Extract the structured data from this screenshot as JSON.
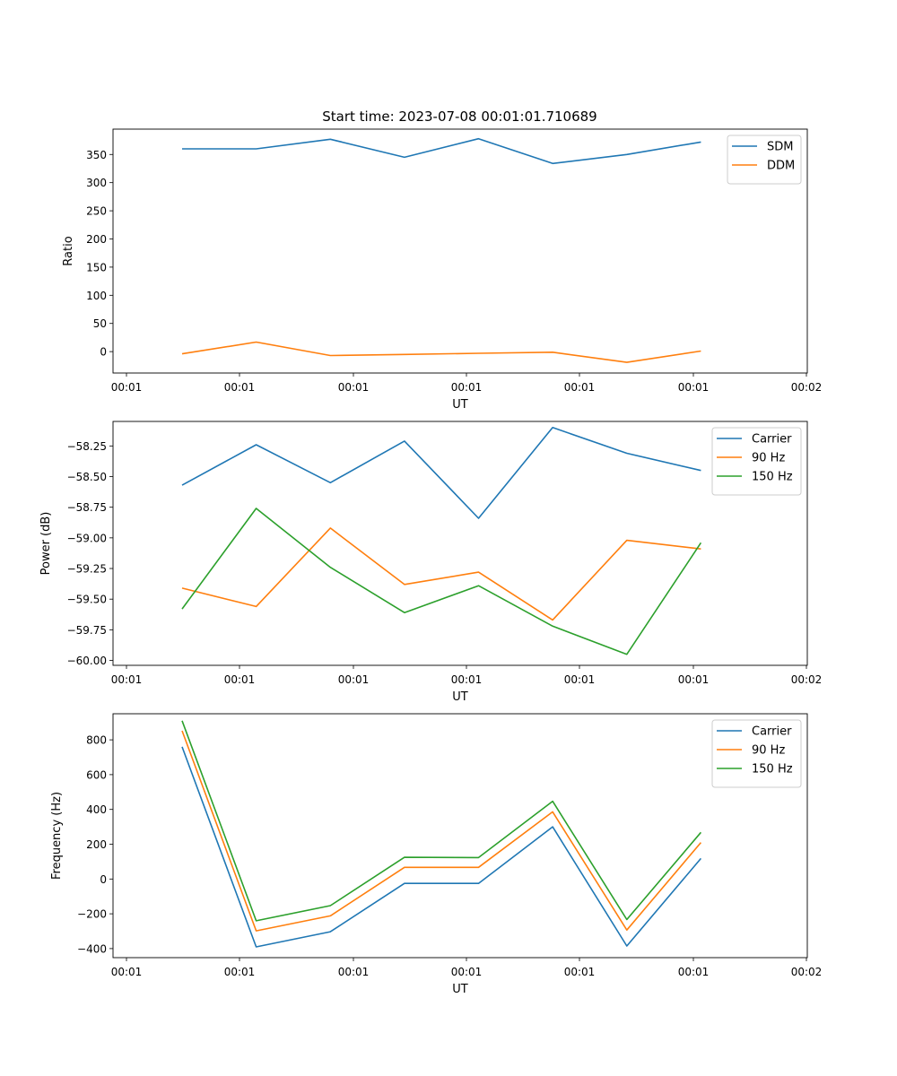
{
  "title": "Start time: 2023-07-08 00:01:01.710689",
  "colors": {
    "c1": "#1f77b4",
    "c2": "#ff7f0e",
    "c3": "#2ca02c"
  },
  "chart_data": [
    {
      "type": "line",
      "id": "ratio",
      "xlabel": "UT",
      "ylabel": "Ratio",
      "x_tick_labels": [
        "00:01",
        "00:01",
        "00:01",
        "00:01",
        "00:01",
        "00:01",
        "00:02"
      ],
      "ylim": [
        -38,
        395
      ],
      "y_ticks": [
        0,
        50,
        100,
        150,
        200,
        250,
        300,
        350
      ],
      "y_tick_labels": [
        "0",
        "50",
        "100",
        "150",
        "200",
        "250",
        "300",
        "350"
      ],
      "x": [
        0,
        1,
        2,
        3,
        4,
        5,
        6,
        7
      ],
      "legend_position": "top-right",
      "series": [
        {
          "name": "SDM",
          "color": "#1f77b4",
          "values": [
            360,
            360,
            377,
            345,
            378,
            334,
            350,
            372
          ]
        },
        {
          "name": "DDM",
          "color": "#ff7f0e",
          "values": [
            -4,
            17,
            -7,
            -5,
            -3,
            -1,
            -19,
            1
          ]
        }
      ]
    },
    {
      "type": "line",
      "id": "power",
      "xlabel": "UT",
      "ylabel": "Power (dB)",
      "x_tick_labels": [
        "00:01",
        "00:01",
        "00:01",
        "00:01",
        "00:01",
        "00:01",
        "00:02"
      ],
      "ylim": [
        -60.04,
        -58.05
      ],
      "y_ticks": [
        -60.0,
        -59.75,
        -59.5,
        -59.25,
        -59.0,
        -58.75,
        -58.5,
        -58.25
      ],
      "y_tick_labels": [
        "−60.00",
        "−59.75",
        "−59.50",
        "−59.25",
        "−59.00",
        "−58.75",
        "−58.50",
        "−58.25"
      ],
      "x": [
        0,
        1,
        2,
        3,
        4,
        5,
        6,
        7
      ],
      "legend_position": "top-right",
      "series": [
        {
          "name": "Carrier",
          "color": "#1f77b4",
          "values": [
            -58.57,
            -58.24,
            -58.55,
            -58.21,
            -58.84,
            -58.1,
            -58.31,
            -58.45
          ]
        },
        {
          "name": "90 Hz",
          "color": "#ff7f0e",
          "values": [
            -59.41,
            -59.56,
            -58.92,
            -59.38,
            -59.28,
            -59.67,
            -59.02,
            -59.09
          ]
        },
        {
          "name": "150 Hz",
          "color": "#2ca02c",
          "values": [
            -59.58,
            -58.76,
            -59.24,
            -59.61,
            -59.39,
            -59.72,
            -59.95,
            -59.04
          ]
        }
      ]
    },
    {
      "type": "line",
      "id": "frequency",
      "xlabel": "UT",
      "ylabel": "Frequency (Hz)",
      "x_tick_labels": [
        "00:01",
        "00:01",
        "00:01",
        "00:01",
        "00:01",
        "00:01",
        "00:02"
      ],
      "ylim": [
        -452,
        950
      ],
      "y_ticks": [
        -400,
        -200,
        0,
        200,
        400,
        600,
        800
      ],
      "y_tick_labels": [
        "−400",
        "−200",
        "0",
        "200",
        "400",
        "600",
        "800"
      ],
      "x": [
        0,
        1,
        2,
        3,
        4,
        5,
        6,
        7
      ],
      "legend_position": "top-right",
      "series": [
        {
          "name": "Carrier",
          "color": "#1f77b4",
          "values": [
            760,
            -390,
            -303,
            -25,
            -25,
            300,
            -385,
            118
          ]
        },
        {
          "name": "90 Hz",
          "color": "#ff7f0e",
          "values": [
            852,
            -298,
            -212,
            67,
            67,
            386,
            -293,
            210
          ]
        },
        {
          "name": "150 Hz",
          "color": "#2ca02c",
          "values": [
            910,
            -240,
            -153,
            125,
            123,
            447,
            -233,
            268
          ]
        }
      ]
    }
  ]
}
